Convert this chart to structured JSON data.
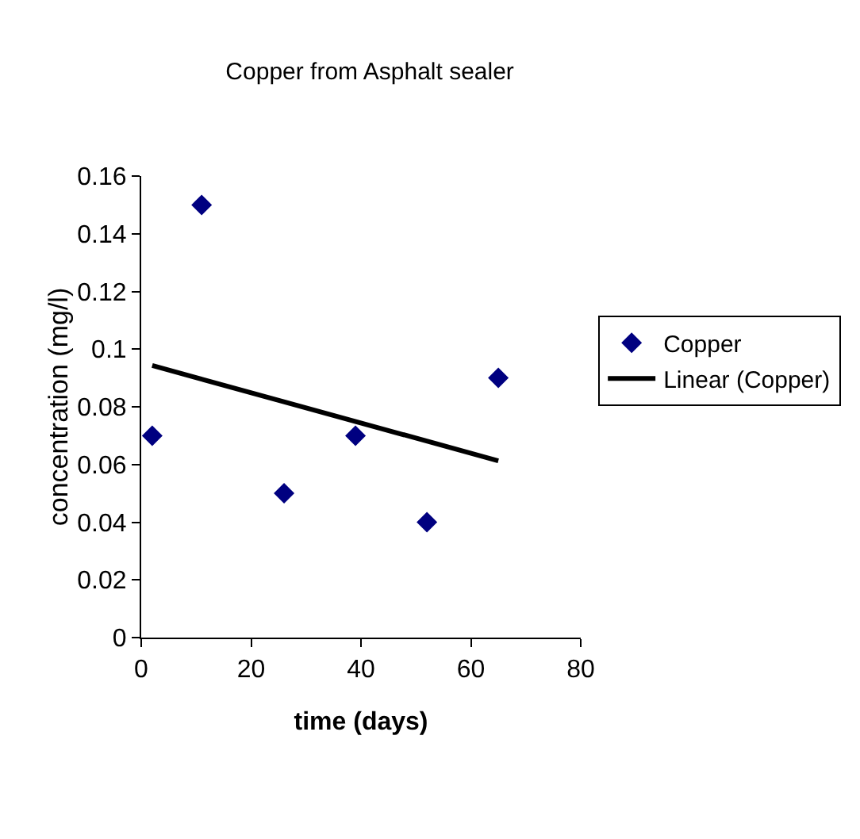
{
  "chart_data": {
    "type": "scatter",
    "title": "Copper from Asphalt sealer",
    "xlabel": "time (days)",
    "ylabel": "concentration (mg/l)",
    "x": [
      2,
      11,
      26,
      39,
      52,
      65
    ],
    "series": [
      {
        "name": "Copper",
        "color": "#000080",
        "marker": "diamond",
        "values": [
          0.07,
          0.15,
          0.05,
          0.07,
          0.04,
          0.09
        ]
      },
      {
        "name": "Linear (Copper)",
        "type": "line",
        "color": "#000000",
        "line_style": "solid",
        "x": [
          2,
          65
        ],
        "values": [
          0.0943,
          0.0613
        ]
      }
    ],
    "xlim": [
      0,
      80
    ],
    "xticks": [
      0,
      20,
      40,
      60,
      80
    ],
    "ylim": [
      0,
      0.16
    ],
    "yticks": [
      {
        "value": 0,
        "label": "0"
      },
      0.02,
      0.04,
      0.06,
      0.08,
      0.1,
      0.12,
      0.14,
      0.16
    ],
    "grid": false,
    "legend": "right"
  }
}
